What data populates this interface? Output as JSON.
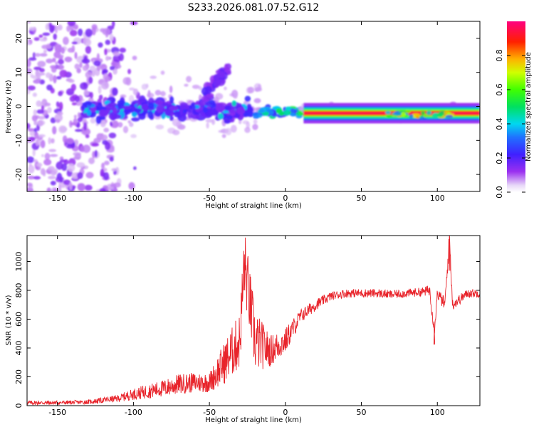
{
  "title": "S233.2026.081.07.52.G12",
  "chart_data": [
    {
      "type": "heatmap",
      "name": "spectrogram",
      "xlabel": "Height of straight line (km)",
      "ylabel": "Frequency (Hz)",
      "xlim": [
        -170,
        128
      ],
      "ylim": [
        -25,
        25
      ],
      "xticks": [
        -150,
        -100,
        -50,
        0,
        50,
        100
      ],
      "yticks": [
        -20,
        -10,
        0,
        10,
        20
      ],
      "colorbar": {
        "label": "Normalized spectral amplitude",
        "range": [
          0.0,
          1.0
        ],
        "ticks": [
          "0.0",
          "0.2",
          "0.4",
          "0.6",
          "0.8"
        ]
      },
      "features": [
        {
          "description": "scattered low-amplitude noise",
          "x_range": [
            -170,
            -110
          ],
          "y_range": [
            -25,
            25
          ],
          "amplitude": 0.15
        },
        {
          "description": "broad blobs around 0 Hz",
          "x_range": [
            -130,
            -50
          ],
          "y_center": -1,
          "amplitude": 0.3
        },
        {
          "description": "rising branch",
          "x_range": [
            -55,
            -40
          ],
          "y_range": [
            2,
            16
          ],
          "amplitude": 0.25
        },
        {
          "description": "coherent narrow line",
          "x_range": [
            10,
            128
          ],
          "y_center": -2,
          "amplitude": 0.95
        }
      ]
    },
    {
      "type": "line",
      "name": "snr",
      "xlabel": "Height of straight line (km)",
      "ylabel": "SNR (10 * v/v)",
      "xlim": [
        -170,
        128
      ],
      "ylim": [
        0,
        1180
      ],
      "xticks": [
        -150,
        -100,
        -50,
        0,
        50,
        100
      ],
      "yticks": [
        0,
        200,
        400,
        600,
        800,
        1000
      ],
      "color": "#e8232a",
      "series": [
        {
          "name": "SNR",
          "x": [
            -170,
            -150,
            -130,
            -110,
            -100,
            -90,
            -80,
            -70,
            -60,
            -50,
            -40,
            -30,
            -27,
            -20,
            -10,
            0,
            10,
            20,
            30,
            40,
            50,
            60,
            70,
            80,
            90,
            95,
            98,
            100,
            105,
            108,
            110,
            120,
            128
          ],
          "y": [
            20,
            20,
            25,
            50,
            80,
            100,
            120,
            150,
            160,
            160,
            300,
            450,
            1000,
            450,
            380,
            450,
            620,
            700,
            760,
            780,
            780,
            780,
            770,
            780,
            790,
            800,
            530,
            780,
            700,
            1170,
            700,
            780,
            780
          ],
          "noise": [
            15,
            15,
            15,
            25,
            40,
            50,
            60,
            70,
            70,
            70,
            150,
            200,
            250,
            220,
            110,
            90,
            50,
            40,
            30,
            30,
            30,
            30,
            30,
            30,
            30,
            40,
            60,
            40,
            50,
            60,
            40,
            30,
            30
          ]
        }
      ]
    }
  ]
}
